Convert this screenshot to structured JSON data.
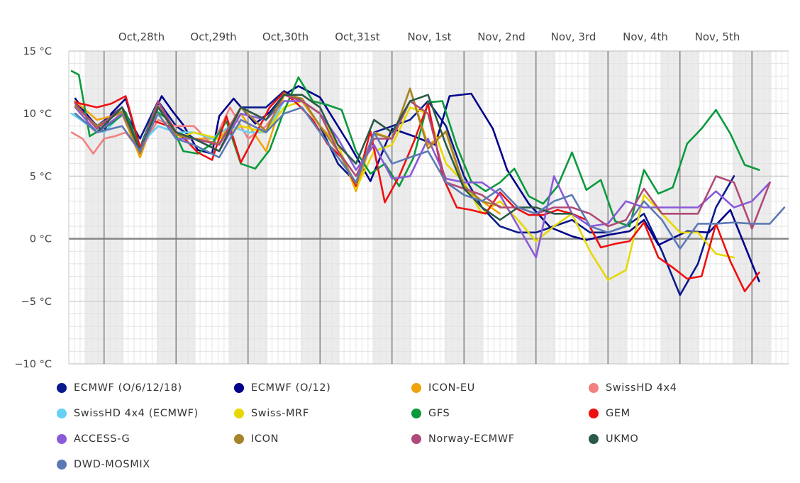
{
  "chart_data": {
    "type": "line",
    "y_unit": "°C",
    "ylim": [
      -10,
      15
    ],
    "yticks": [
      15,
      10,
      5,
      0,
      -5,
      -10
    ],
    "ytick_labels": [
      "15 °C",
      "10 °C",
      "5 °C",
      "0 °C",
      "−5 °C",
      "−10 °C"
    ],
    "x_range": [
      0,
      10
    ],
    "day_labels": [
      {
        "label": "Oct,28th",
        "x": 1.0
      },
      {
        "label": "Oct,29th",
        "x": 2.0
      },
      {
        "label": "Oct,30th",
        "x": 3.0
      },
      {
        "label": "Oct,31st",
        "x": 4.0
      },
      {
        "label": "Nov, 1st",
        "x": 5.0
      },
      {
        "label": "Nov, 2nd",
        "x": 6.0
      },
      {
        "label": "Nov, 3rd",
        "x": 7.0
      },
      {
        "label": "Nov, 4th",
        "x": 8.0
      },
      {
        "label": "Nov, 5th",
        "x": 9.0
      }
    ],
    "grid": true,
    "legend_position": "bottom",
    "series": [
      {
        "name": "ECMWF (O/6/12/18)",
        "color": "#0a1a8c",
        "x": [
          0.1,
          0.4,
          0.75,
          1.0,
          1.25,
          1.5,
          1.75,
          2.1,
          2.4,
          2.75,
          3.0,
          3.25,
          3.5,
          3.75,
          4.0,
          4.25,
          4.5,
          4.75,
          5.0,
          5.25,
          5.5,
          5.75,
          6.0,
          6.25,
          6.5,
          6.75,
          7.0,
          7.25,
          7.5,
          7.75,
          8.0,
          8.25,
          8.5,
          8.75,
          9.0,
          9.25
        ],
        "y": [
          11.0,
          9.0,
          10.5,
          8.0,
          11.0,
          9.0,
          8.0,
          7.0,
          10.5,
          10.5,
          11.8,
          11.0,
          9.0,
          6.0,
          4.5,
          8.5,
          9.0,
          9.5,
          11.0,
          9.0,
          5.0,
          2.5,
          1.0,
          0.5,
          0.5,
          1.0,
          1.5,
          0.5,
          0.5,
          1.0,
          2.0,
          -1.0,
          -4.5,
          -2.0,
          2.5,
          5.0
        ]
      },
      {
        "name": "ECMWF (O/12)",
        "color": "#00008b",
        "x": [
          0.1,
          0.3,
          0.5,
          0.6,
          0.8,
          1.0,
          1.15,
          1.3,
          1.45,
          1.6,
          1.8,
          2.0,
          2.1,
          2.3,
          2.6,
          2.8,
          3.0,
          3.2,
          3.5,
          3.9,
          4.2,
          4.5,
          4.8,
          5.1,
          5.3,
          5.6,
          5.9,
          6.1,
          6.4,
          6.7,
          7.0,
          7.2,
          7.5,
          7.8,
          8.0,
          8.2,
          8.6,
          8.9,
          9.2,
          9.6
        ],
        "y": [
          11.2,
          9.6,
          8.5,
          10.0,
          11.2,
          7.3,
          9.5,
          11.4,
          10.2,
          9.1,
          7.1,
          6.8,
          9.8,
          11.2,
          9.2,
          10.1,
          11.5,
          12.2,
          11.3,
          7.6,
          4.6,
          8.8,
          8.2,
          7.5,
          11.4,
          11.6,
          8.8,
          5.5,
          2.8,
          0.9,
          0.2,
          -0.1,
          0.3,
          0.6,
          1.5,
          -0.5,
          0.6,
          0.5,
          2.3,
          -3.4
        ]
      },
      {
        "name": "ICON-EU",
        "color": "#f0a30a",
        "x": [
          0.1,
          0.4,
          0.75,
          1.0,
          1.25,
          1.5,
          1.75,
          2.1,
          2.4,
          2.75,
          3.0,
          3.25,
          3.5,
          3.75,
          4.0,
          4.25,
          4.5,
          4.75,
          5.0,
          5.25,
          5.5,
          5.75,
          6.0
        ],
        "y": [
          11.0,
          9.5,
          10.0,
          6.5,
          10.5,
          8.5,
          8.0,
          8.0,
          10.0,
          7.0,
          11.5,
          11.0,
          9.0,
          7.5,
          3.8,
          8.5,
          8.0,
          12.0,
          7.5,
          8.5,
          4.0,
          3.0,
          2.0
        ]
      },
      {
        "name": "SwissHD 4x4",
        "color": "#f28080",
        "x": [
          0.05,
          0.2,
          0.35,
          0.5,
          0.65,
          0.8,
          1.0,
          1.25,
          1.5,
          1.75,
          2.0,
          2.25,
          2.5,
          2.75,
          3.0
        ],
        "y": [
          8.5,
          8.0,
          6.8,
          8.0,
          8.2,
          8.5,
          7.0,
          9.5,
          9.0,
          9.0,
          7.5,
          10.5,
          8.0,
          9.0,
          11.0
        ]
      },
      {
        "name": "SwissHD 4x4 (ECMWF)",
        "color": "#66d0f5",
        "x": [
          0.05,
          0.3,
          0.5,
          0.75,
          1.0,
          1.25,
          1.5,
          1.75,
          2.0,
          2.25,
          2.5,
          2.75,
          3.0
        ],
        "y": [
          10.0,
          9.0,
          8.5,
          10.0,
          7.5,
          9.0,
          8.5,
          8.5,
          8.0,
          9.0,
          8.5,
          8.5,
          11.0
        ]
      },
      {
        "name": "Swiss-MRF",
        "color": "#e6d800",
        "x": [
          0.1,
          0.4,
          0.75,
          1.0,
          1.25,
          1.5,
          1.75,
          2.1,
          2.4,
          2.75,
          3.0,
          3.25,
          3.5,
          3.75,
          4.0,
          4.25,
          4.5,
          4.75,
          5.0,
          5.25,
          5.5,
          5.75,
          6.0,
          6.25,
          6.5,
          6.75,
          7.0,
          7.25,
          7.5,
          7.75,
          8.0,
          8.25,
          8.5,
          8.75,
          9.0,
          9.25
        ],
        "y": [
          10.5,
          8.5,
          10.0,
          7.0,
          10.0,
          8.0,
          8.5,
          8.0,
          9.0,
          8.5,
          10.5,
          11.0,
          10.0,
          7.5,
          4.0,
          7.0,
          7.5,
          10.5,
          10.0,
          6.0,
          4.5,
          2.0,
          3.0,
          1.5,
          -0.2,
          1.0,
          2.0,
          -1.0,
          -3.3,
          -2.5,
          3.5,
          2.0,
          0.5,
          0.5,
          -1.2,
          -1.5
        ]
      },
      {
        "name": "GFS",
        "color": "#0a9a3c",
        "x": [
          0.05,
          0.15,
          0.3,
          0.6,
          0.8,
          1.0,
          1.2,
          1.4,
          1.6,
          1.8,
          2.0,
          2.2,
          2.4,
          2.6,
          2.8,
          3.0,
          3.2,
          3.4,
          3.6,
          3.8,
          4.0,
          4.2,
          4.4,
          4.6,
          4.8,
          5.0,
          5.2,
          5.4,
          5.6,
          5.8,
          6.0,
          6.2,
          6.4,
          6.6,
          6.8,
          7.0,
          7.2,
          7.4,
          7.6,
          7.8,
          8.0,
          8.2,
          8.4,
          8.6,
          8.8,
          9.0,
          9.2,
          9.4,
          9.6
        ],
        "y": [
          13.4,
          13.1,
          8.2,
          9.2,
          10.1,
          7.2,
          10.3,
          9.5,
          7.0,
          6.8,
          7.6,
          9.4,
          6.0,
          5.6,
          7.1,
          10.2,
          12.9,
          11.0,
          10.7,
          10.3,
          7.0,
          5.2,
          6.0,
          4.2,
          6.5,
          10.9,
          11.0,
          7.4,
          4.6,
          3.8,
          4.5,
          5.6,
          3.4,
          2.8,
          4.2,
          6.9,
          3.9,
          4.7,
          1.4,
          1.0,
          5.5,
          3.6,
          4.1,
          7.6,
          8.8,
          10.3,
          8.4,
          5.9,
          5.5
        ]
      },
      {
        "name": "GEM",
        "color": "#ee1010",
        "x": [
          0.1,
          0.4,
          0.6,
          0.8,
          1.0,
          1.2,
          1.4,
          1.6,
          1.8,
          2.0,
          2.2,
          2.4,
          2.6,
          2.8,
          3.0,
          3.2,
          3.4,
          3.6,
          3.8,
          4.0,
          4.2,
          4.4,
          4.6,
          4.8,
          5.0,
          5.2,
          5.4,
          5.6,
          5.8,
          6.0,
          6.2,
          6.4,
          6.6,
          6.8,
          7.0,
          7.2,
          7.4,
          7.6,
          7.8,
          8.0,
          8.2,
          8.4,
          8.6,
          8.8,
          9.0,
          9.2,
          9.4,
          9.6
        ],
        "y": [
          10.9,
          10.5,
          10.8,
          11.4,
          7.3,
          9.4,
          9.0,
          8.1,
          6.9,
          6.3,
          9.8,
          6.1,
          8.3,
          10.5,
          11.7,
          10.7,
          9.5,
          7.6,
          6.5,
          4.2,
          8.6,
          2.9,
          5.0,
          7.7,
          10.8,
          5.0,
          2.5,
          2.3,
          2.0,
          3.7,
          2.5,
          1.9,
          1.9,
          2.3,
          2.0,
          1.5,
          -0.7,
          -0.4,
          -0.2,
          1.3,
          -1.5,
          -2.3,
          -3.2,
          -3.0,
          1.2,
          -1.8,
          -4.2,
          -2.7
        ]
      },
      {
        "name": "ACCESS-G",
        "color": "#8a5ad9",
        "x": [
          0.1,
          0.4,
          0.75,
          1.0,
          1.25,
          1.5,
          1.75,
          2.1,
          2.4,
          2.75,
          3.0,
          3.25,
          3.5,
          3.75,
          4.0,
          4.25,
          4.5,
          4.75,
          5.0,
          5.25,
          5.5,
          5.75,
          6.0,
          6.25,
          6.5,
          6.75,
          7.0,
          7.25,
          7.5,
          7.75,
          8.0,
          8.25,
          8.5,
          8.75,
          9.0,
          9.25,
          9.5,
          9.75
        ],
        "y": [
          10.5,
          8.5,
          10.0,
          7.0,
          11.0,
          8.0,
          8.0,
          7.0,
          10.0,
          9.5,
          11.0,
          11.0,
          10.0,
          8.0,
          5.5,
          7.5,
          4.8,
          5.0,
          8.0,
          4.8,
          4.5,
          4.5,
          3.5,
          1.0,
          -1.5,
          5.0,
          2.0,
          1.0,
          1.2,
          3.0,
          2.5,
          2.5,
          2.5,
          2.5,
          3.8,
          2.5,
          3.0,
          4.5
        ]
      },
      {
        "name": "ICON",
        "color": "#a6842a",
        "x": [
          0.1,
          0.4,
          0.75,
          1.0,
          1.25,
          1.5,
          1.75,
          2.1,
          2.4,
          2.75,
          3.0,
          3.25,
          3.5,
          3.75,
          4.0,
          4.25,
          4.5,
          4.75,
          5.0,
          5.25,
          5.5,
          5.75,
          6.0
        ],
        "y": [
          10.6,
          9.0,
          10.2,
          6.8,
          10.6,
          8.3,
          8.0,
          7.6,
          10.5,
          8.6,
          11.6,
          11.2,
          9.0,
          7.0,
          4.4,
          8.4,
          8.0,
          12.0,
          7.2,
          8.6,
          4.2,
          3.0,
          2.6
        ]
      },
      {
        "name": "Norway-ECMWF",
        "color": "#b04a78",
        "x": [
          0.1,
          0.4,
          0.75,
          1.0,
          1.25,
          1.5,
          1.75,
          2.1,
          2.4,
          2.75,
          3.0,
          3.25,
          3.5,
          3.75,
          4.0,
          4.25,
          4.5,
          4.75,
          5.0,
          5.25,
          5.5,
          5.75,
          6.0,
          6.25,
          6.5,
          6.75,
          7.0,
          7.25,
          7.5,
          7.75,
          8.0,
          8.25,
          8.5,
          8.75,
          9.0,
          9.25,
          9.5,
          9.75
        ],
        "y": [
          10.8,
          8.8,
          10.5,
          7.0,
          11.0,
          8.5,
          8.0,
          7.5,
          10.5,
          9.5,
          11.5,
          11.0,
          10.0,
          7.0,
          5.0,
          8.0,
          8.0,
          11.0,
          10.0,
          4.5,
          4.0,
          3.5,
          2.5,
          2.5,
          2.0,
          2.5,
          2.5,
          2.0,
          1.0,
          1.5,
          4.0,
          2.0,
          2.0,
          2.0,
          5.0,
          4.5,
          0.8,
          4.5
        ]
      },
      {
        "name": "UKMO",
        "color": "#2a5a46",
        "x": [
          0.1,
          0.4,
          0.75,
          1.0,
          1.25,
          1.5,
          1.75,
          2.1,
          2.4,
          2.75,
          3.0,
          3.25,
          3.5,
          3.75,
          4.0,
          4.25,
          4.5,
          4.75,
          5.0,
          5.25,
          5.5,
          5.75,
          6.0,
          6.25,
          6.5,
          6.75,
          7.0
        ],
        "y": [
          10.0,
          8.5,
          10.5,
          7.0,
          10.5,
          8.5,
          8.0,
          7.0,
          10.5,
          9.5,
          11.5,
          11.5,
          10.5,
          7.5,
          6.0,
          9.5,
          8.5,
          11.0,
          11.5,
          7.5,
          4.0,
          2.5,
          1.5,
          2.5,
          2.5,
          2.0,
          2.0
        ]
      },
      {
        "name": "DWD-MOSMIX",
        "color": "#5b7ab5",
        "x": [
          0.1,
          0.4,
          0.75,
          1.0,
          1.25,
          1.5,
          1.75,
          2.1,
          2.4,
          2.75,
          3.0,
          3.25,
          3.5,
          3.75,
          4.0,
          4.25,
          4.5,
          4.75,
          5.0,
          5.25,
          5.5,
          5.75,
          6.0,
          6.25,
          6.5,
          6.75,
          7.0,
          7.25,
          7.5,
          7.75,
          8.0,
          8.25,
          8.5,
          8.75,
          9.0,
          9.25,
          9.5,
          9.75,
          9.95
        ],
        "y": [
          10.0,
          8.5,
          9.0,
          7.0,
          10.0,
          8.0,
          7.5,
          6.5,
          9.5,
          8.5,
          10.0,
          10.5,
          8.5,
          6.5,
          4.5,
          8.5,
          6.0,
          6.5,
          7.0,
          4.5,
          3.5,
          3.0,
          4.0,
          2.5,
          2.0,
          3.0,
          3.5,
          1.0,
          0.5,
          1.0,
          3.0,
          1.5,
          -0.8,
          1.2,
          1.2,
          1.3,
          1.2,
          1.2,
          2.5
        ]
      }
    ]
  }
}
